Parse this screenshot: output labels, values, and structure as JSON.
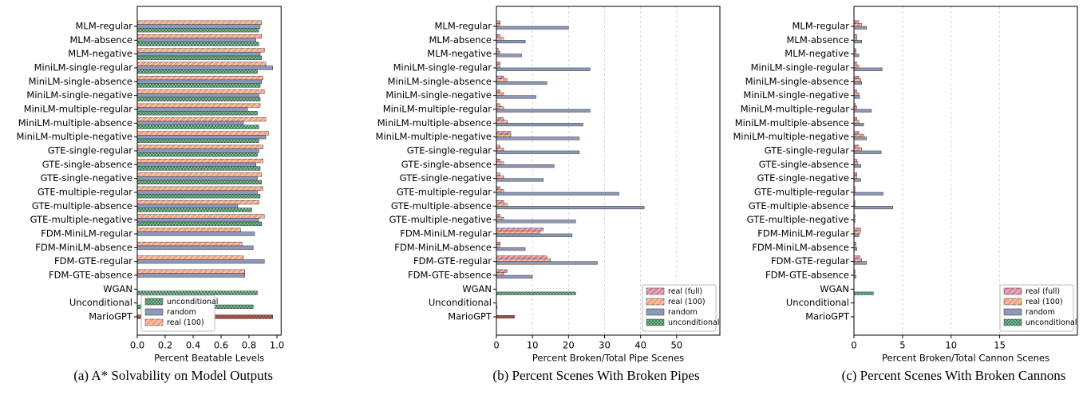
{
  "chart_data": [
    {
      "type": "barh",
      "caption": "(a) A* Solvability on Model Outputs",
      "xlabel": "Percent Beatable Levels",
      "categories": [
        "MLM-regular",
        "MLM-absence",
        "MLM-negative",
        "MiniLM-single-regular",
        "MiniLM-single-absence",
        "MiniLM-single-negative",
        "MiniLM-multiple-regular",
        "MiniLM-multiple-absence",
        "MiniLM-multiple-negative",
        "GTE-single-regular",
        "GTE-single-absence",
        "GTE-single-negative",
        "GTE-multiple-regular",
        "GTE-multiple-absence",
        "GTE-multiple-negative",
        "FDM-MiniLM-regular",
        "FDM-MiniLM-absence",
        "FDM-GTE-regular",
        "FDM-GTE-absence",
        "WGAN",
        "Unconditional",
        "MarioGPT"
      ],
      "series": [
        {
          "name": "real (100)",
          "color": "#f4a582",
          "hatch": "diag",
          "values": [
            0.89,
            0.89,
            0.91,
            0.92,
            0.9,
            0.91,
            0.88,
            0.92,
            0.94,
            0.9,
            0.9,
            0.89,
            0.9,
            0.87,
            0.91,
            0.74,
            0.75,
            0.76,
            0.77,
            null,
            null,
            null
          ]
        },
        {
          "name": "random",
          "color": "#8d99b8",
          "hatch": "none",
          "values": [
            0.88,
            0.85,
            0.88,
            0.97,
            0.89,
            0.87,
            0.79,
            0.76,
            0.92,
            0.87,
            0.85,
            0.86,
            0.86,
            0.72,
            0.87,
            0.84,
            0.83,
            0.91,
            0.77,
            null,
            null,
            null
          ]
        },
        {
          "name": "unconditional",
          "color": "#7fbf9a",
          "hatch": "cross",
          "values": [
            0.87,
            0.87,
            0.89,
            0.86,
            0.88,
            0.88,
            0.86,
            0.87,
            0.87,
            0.86,
            0.88,
            0.89,
            0.88,
            0.82,
            0.89,
            null,
            null,
            null,
            null,
            0.86,
            0.83,
            null
          ]
        },
        {
          "color": "#e0474c",
          "hatch": "cross",
          "values": [
            null,
            null,
            null,
            null,
            null,
            null,
            null,
            null,
            null,
            null,
            null,
            null,
            null,
            null,
            null,
            null,
            null,
            null,
            null,
            null,
            null,
            0.97
          ]
        }
      ],
      "xlim": [
        0,
        1.03
      ],
      "xticks": [
        {
          "value": 0,
          "label": "0.0"
        },
        0.2,
        0.4,
        0.6,
        0.8,
        {
          "value": 1,
          "label": "1.0"
        }
      ],
      "grid": false,
      "legend": "lower left",
      "legend_reversed": true
    },
    {
      "type": "barh",
      "caption": "(b) Percent Scenes With Broken Pipes",
      "xlabel": "Percent Broken/Total Pipe Scenes",
      "categories": [
        "MLM-regular",
        "MLM-absence",
        "MLM-negative",
        "MiniLM-single-regular",
        "MiniLM-single-absence",
        "MiniLM-single-negative",
        "MiniLM-multiple-regular",
        "MiniLM-multiple-absence",
        "MiniLM-multiple-negative",
        "GTE-single-regular",
        "GTE-single-absence",
        "GTE-single-negative",
        "GTE-multiple-regular",
        "GTE-multiple-absence",
        "GTE-multiple-negative",
        "FDM-MiniLM-regular",
        "FDM-MiniLM-absence",
        "FDM-GTE-regular",
        "FDM-GTE-absence",
        "WGAN",
        "Unconditional",
        "MarioGPT"
      ],
      "series": [
        {
          "name": "real (full)",
          "color": "#d88aa5",
          "hatch": "diag",
          "values": [
            1,
            1,
            0.5,
            1,
            2,
            1,
            1,
            2,
            4,
            1,
            1,
            1,
            1,
            2,
            1,
            13,
            1,
            14,
            3,
            null,
            null,
            null
          ]
        },
        {
          "name": "real (100)",
          "color": "#f4a582",
          "hatch": "diag",
          "values": [
            1,
            2,
            1,
            1,
            3,
            2,
            2,
            3,
            4,
            2,
            2,
            2,
            2,
            3,
            2,
            12,
            1,
            15,
            2,
            null,
            null,
            null
          ]
        },
        {
          "name": "random",
          "color": "#8d99b8",
          "hatch": "none",
          "values": [
            20,
            8,
            7,
            26,
            14,
            11,
            26,
            24,
            23,
            23,
            16,
            13,
            34,
            41,
            22,
            21,
            8,
            28,
            10,
            null,
            null,
            null
          ]
        },
        {
          "name": "unconditional",
          "color": "#7fbf9a",
          "hatch": "cross",
          "values": [
            null,
            null,
            null,
            null,
            null,
            null,
            null,
            null,
            null,
            null,
            null,
            null,
            null,
            null,
            null,
            null,
            null,
            null,
            null,
            22,
            0.2,
            null
          ]
        },
        {
          "color": "#e0474c",
          "hatch": "cross",
          "values": [
            null,
            null,
            null,
            null,
            null,
            null,
            null,
            null,
            null,
            null,
            null,
            null,
            null,
            null,
            null,
            null,
            null,
            null,
            null,
            null,
            null,
            5
          ]
        }
      ],
      "xlim": [
        0,
        62
      ],
      "xticks": [
        0,
        10,
        20,
        30,
        40,
        50
      ],
      "grid": true,
      "legend": "lower right",
      "legend_reversed": false
    },
    {
      "type": "barh",
      "caption": "(c) Percent Scenes With Broken Cannons",
      "xlabel": "Percent Broken/Total Cannon Scenes",
      "categories": [
        "MLM-regular",
        "MLM-absence",
        "MLM-negative",
        "MiniLM-single-regular",
        "MiniLM-single-absence",
        "MiniLM-single-negative",
        "MiniLM-multiple-regular",
        "MiniLM-multiple-absence",
        "MiniLM-multiple-negative",
        "GTE-single-regular",
        "GTE-single-absence",
        "GTE-single-negative",
        "GTE-multiple-regular",
        "GTE-multiple-absence",
        "GTE-multiple-negative",
        "FDM-MiniLM-regular",
        "FDM-MiniLM-absence",
        "FDM-GTE-regular",
        "FDM-GTE-absence",
        "WGAN",
        "Unconditional",
        "MarioGPT"
      ],
      "series": [
        {
          "name": "real (full)",
          "color": "#d88aa5",
          "hatch": "diag",
          "values": [
            0.5,
            0.3,
            0.2,
            0.3,
            0.5,
            0.3,
            0.2,
            0.3,
            0.5,
            0.5,
            0.3,
            0.3,
            0.1,
            0.1,
            0.1,
            0.7,
            0.2,
            0.6,
            0.1,
            null,
            null,
            null
          ]
        },
        {
          "name": "real (100)",
          "color": "#f4a582",
          "hatch": "diag",
          "values": [
            0.8,
            0.3,
            0.2,
            0.5,
            0.7,
            0.5,
            0.3,
            0.5,
            1.0,
            0.8,
            0.4,
            0.3,
            0.1,
            0.1,
            0.1,
            0.6,
            0.2,
            0.8,
            0.1,
            null,
            null,
            null
          ]
        },
        {
          "name": "random",
          "color": "#8d99b8",
          "hatch": "none",
          "values": [
            1.3,
            0.8,
            0.5,
            2.9,
            0.8,
            0.6,
            1.8,
            1.0,
            1.3,
            2.8,
            0.7,
            0.7,
            3.0,
            4.0,
            0.1,
            0.5,
            0.3,
            1.3,
            0.2,
            null,
            null,
            null
          ]
        },
        {
          "name": "unconditional",
          "color": "#7fbf9a",
          "hatch": "cross",
          "values": [
            null,
            null,
            null,
            null,
            null,
            null,
            null,
            null,
            null,
            null,
            null,
            null,
            null,
            null,
            null,
            null,
            null,
            null,
            null,
            2.0,
            0,
            null
          ]
        }
      ],
      "xlim": [
        0,
        23
      ],
      "xticks": [
        0,
        5,
        10,
        15
      ],
      "grid": true,
      "legend": "lower right",
      "legend_reversed": false
    }
  ]
}
